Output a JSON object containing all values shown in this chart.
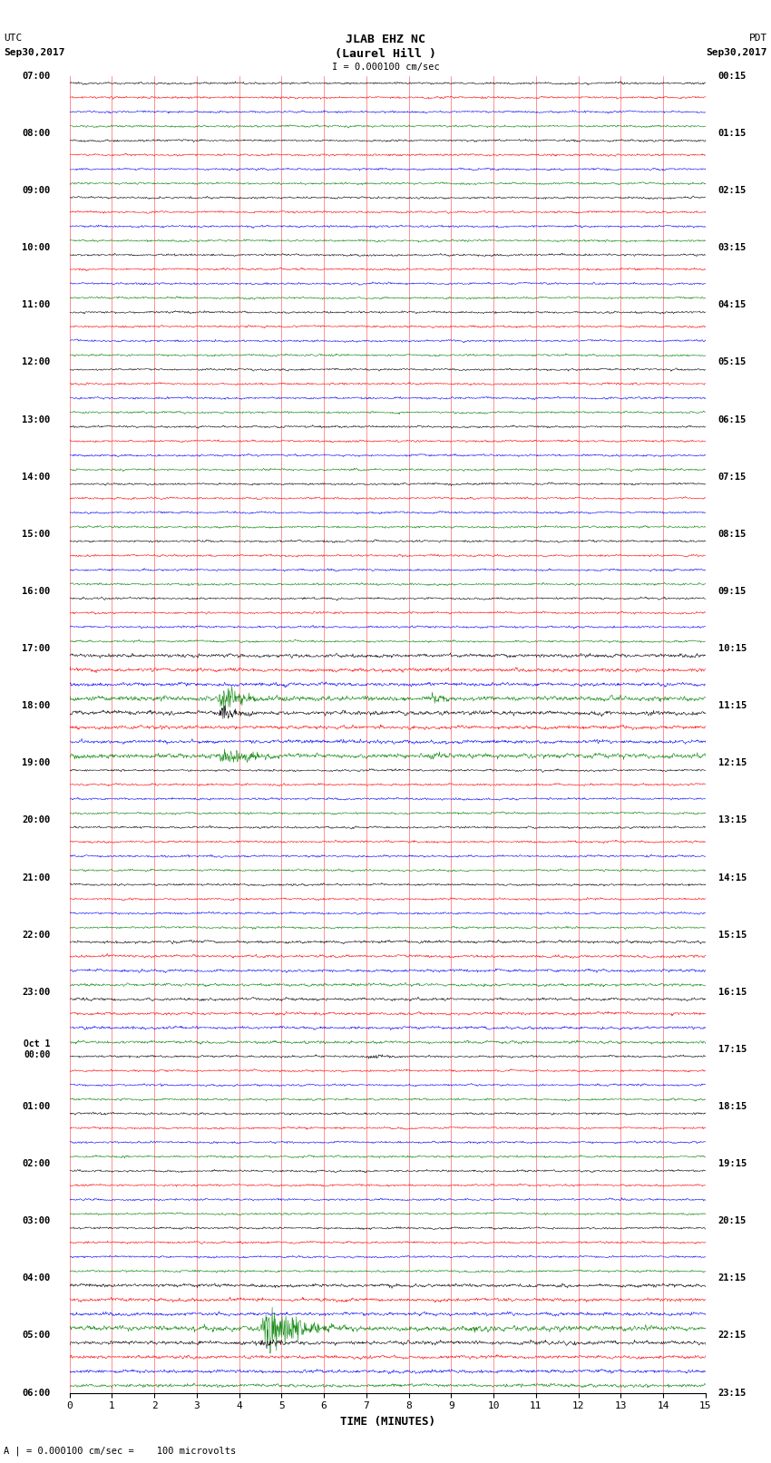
{
  "title_line1": "JLAB EHZ NC",
  "title_line2": "(Laurel Hill )",
  "scale_label": "I = 0.000100 cm/sec",
  "left_label_line1": "UTC",
  "left_label_line2": "Sep30,2017",
  "right_label_line1": "PDT",
  "right_label_line2": "Sep30,2017",
  "bottom_label": "TIME (MINUTES)",
  "bottom_note": "A | = 0.000100 cm/sec =    100 microvolts",
  "num_rows": 92,
  "traces_per_row": 4,
  "colors": [
    "black",
    "red",
    "blue",
    "green"
  ],
  "bg_color": "white",
  "plot_bg": "white",
  "x_min": 0,
  "x_max": 15,
  "x_ticks": [
    0,
    1,
    2,
    3,
    4,
    5,
    6,
    7,
    8,
    9,
    10,
    11,
    12,
    13,
    14,
    15
  ],
  "fig_width": 8.5,
  "fig_height": 16.13,
  "dpi": 100,
  "utc_hours": [
    "07:00",
    "08:00",
    "09:00",
    "10:00",
    "11:00",
    "12:00",
    "13:00",
    "14:00",
    "15:00",
    "16:00",
    "17:00",
    "18:00",
    "19:00",
    "20:00",
    "21:00",
    "22:00",
    "23:00",
    "Oct 1\n00:00",
    "01:00",
    "02:00",
    "03:00",
    "04:00",
    "05:00",
    "06:00"
  ],
  "pdt_hours": [
    "00:15",
    "01:15",
    "02:15",
    "03:15",
    "04:15",
    "05:15",
    "06:15",
    "07:15",
    "08:15",
    "09:15",
    "10:15",
    "11:15",
    "12:15",
    "13:15",
    "14:15",
    "15:15",
    "16:15",
    "17:15",
    "18:15",
    "19:15",
    "20:15",
    "21:15",
    "22:15",
    "23:15"
  ]
}
